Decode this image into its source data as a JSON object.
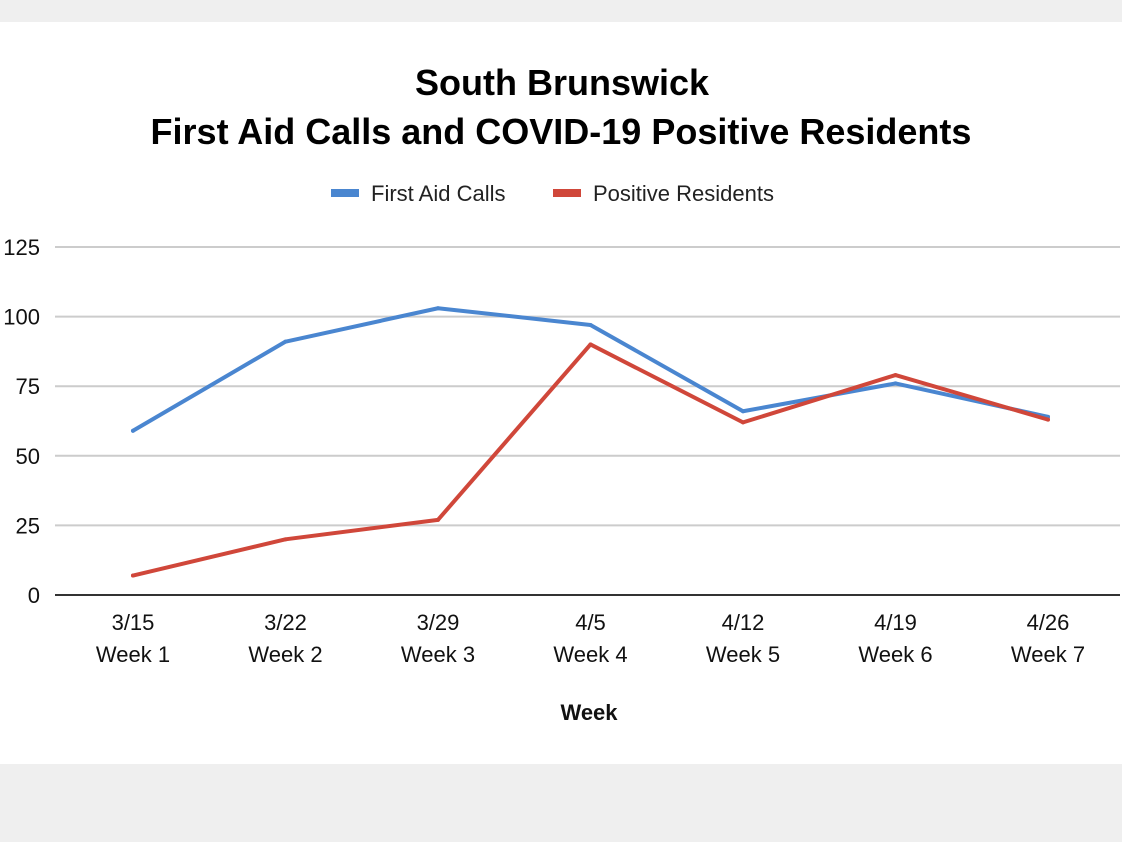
{
  "chart_data": {
    "type": "line",
    "title": [
      "South Brunswick",
      "First Aid Calls and COVID-19 Positive Residents"
    ],
    "xlabel": "Week",
    "ylabel": "",
    "ylim": [
      0,
      125
    ],
    "yticks": [
      0,
      25,
      50,
      75,
      100,
      125
    ],
    "grid": true,
    "legend_position": "top-center",
    "categories": [
      [
        "3/15",
        "Week 1"
      ],
      [
        "3/22",
        "Week 2"
      ],
      [
        "3/29",
        "Week 3"
      ],
      [
        "4/5",
        "Week 4"
      ],
      [
        "4/12",
        "Week 5"
      ],
      [
        "4/19",
        "Week 6"
      ],
      [
        "4/26",
        "Week 7"
      ]
    ],
    "series": [
      {
        "name": "First Aid Calls",
        "color": "#4a86d0",
        "values": [
          59,
          91,
          103,
          97,
          66,
          76,
          64
        ]
      },
      {
        "name": "Positive Residents",
        "color": "#d0473a",
        "values": [
          7,
          20,
          27,
          90,
          62,
          79,
          63
        ]
      }
    ]
  },
  "colors": {
    "gridline": "#cccccc",
    "axis": "#333333"
  }
}
